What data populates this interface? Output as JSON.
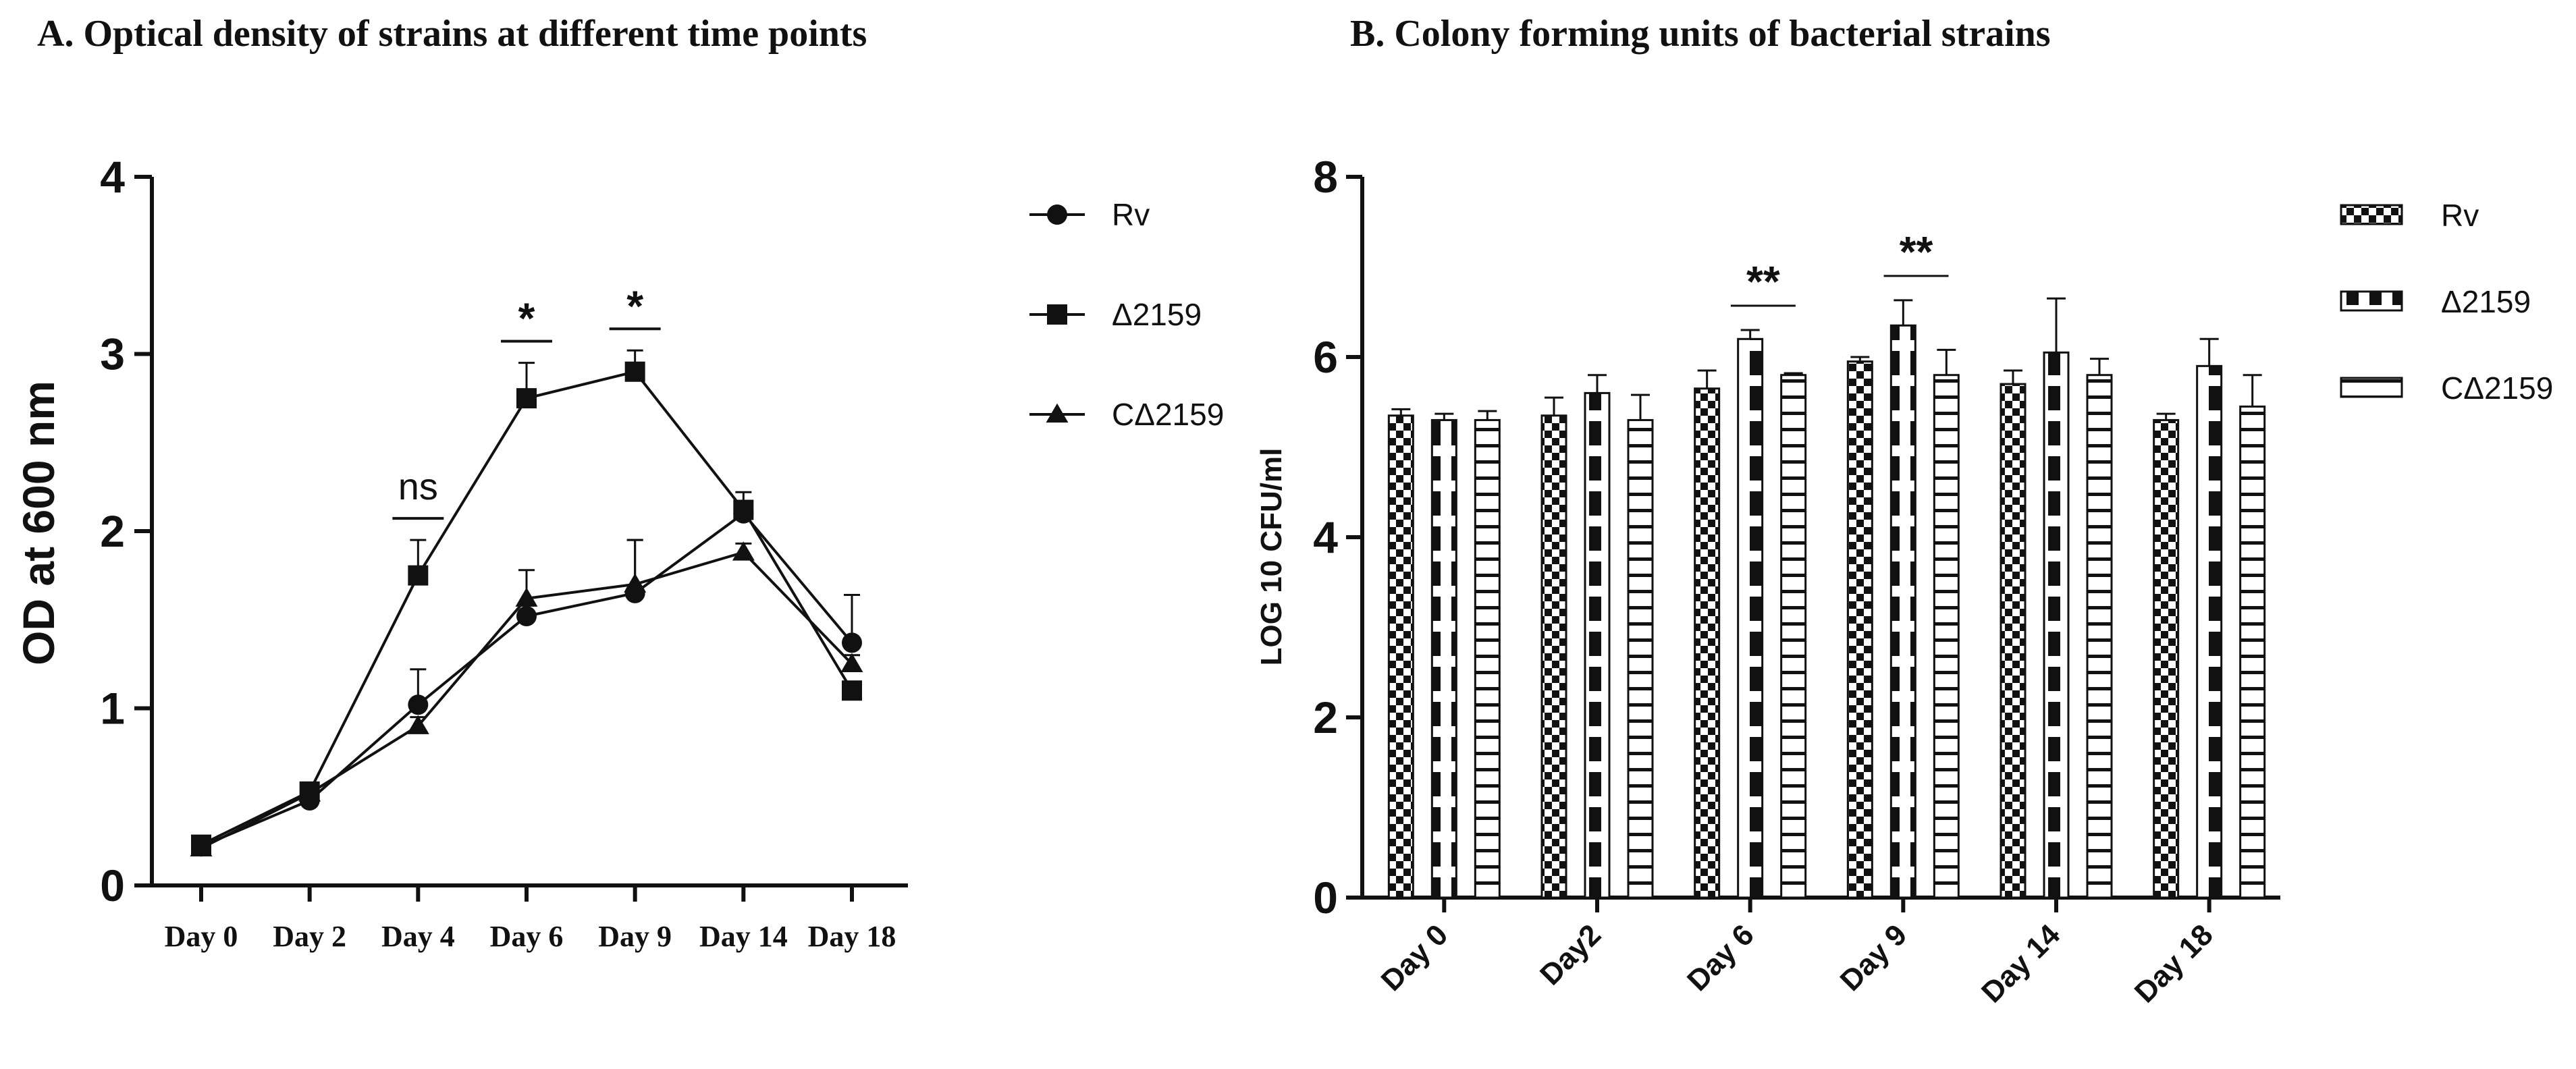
{
  "chart_data": [
    {
      "panel": "A",
      "type": "line",
      "title": "A.   Optical density of strains at different time points",
      "xlabel": "",
      "ylabel": "OD at 600 nm",
      "categories": [
        "Day 0",
        "Day 2",
        "Day 4",
        "Day 6",
        "Day 9",
        "Day 14",
        "Day 18"
      ],
      "ylim": [
        0,
        4
      ],
      "yticks": [
        "0",
        "1",
        "2",
        "3",
        "4"
      ],
      "series": [
        {
          "name": "Rv",
          "marker": "circle",
          "values": [
            0.22,
            0.48,
            1.02,
            1.52,
            1.65,
            2.1,
            1.37
          ],
          "errors": [
            0.03,
            0.03,
            0.2,
            0.06,
            0.3,
            0.06,
            0.27
          ]
        },
        {
          "name": "Δ2159",
          "marker": "square",
          "values": [
            0.23,
            0.53,
            1.75,
            2.75,
            2.9,
            2.12,
            1.1
          ],
          "errors": [
            0.03,
            0.03,
            0.2,
            0.2,
            0.12,
            0.1,
            0.05
          ]
        },
        {
          "name": "CΔ2159",
          "marker": "triangle",
          "values": [
            0.21,
            0.52,
            0.9,
            1.62,
            1.7,
            1.88,
            1.25
          ],
          "errors": [
            0.03,
            0.03,
            0.05,
            0.16,
            0.25,
            0.05,
            0.05
          ]
        }
      ],
      "annotations": [
        {
          "category": "Day 4",
          "text": "ns"
        },
        {
          "category": "Day 6",
          "text": "*"
        },
        {
          "category": "Day 9",
          "text": "*"
        }
      ],
      "legend_position": "right"
    },
    {
      "panel": "B",
      "type": "bar",
      "title": "B.  Colony forming units of bacterial strains",
      "xlabel": "",
      "ylabel": "LOG 10 CFU/ml",
      "categories": [
        "Day 0",
        "Day2",
        "Day 6",
        "Day 9",
        "Day 14",
        "Day 18"
      ],
      "ylim": [
        0,
        8
      ],
      "yticks": [
        "0",
        "2",
        "4",
        "6",
        "8"
      ],
      "series": [
        {
          "name": "Rv",
          "pattern": "checker",
          "values": [
            5.35,
            5.35,
            5.65,
            5.95,
            5.7,
            5.3
          ],
          "errors": [
            0.07,
            0.2,
            0.2,
            0.05,
            0.15,
            0.07
          ]
        },
        {
          "name": "Δ2159",
          "pattern": "block-stripe",
          "values": [
            5.3,
            5.6,
            6.2,
            6.35,
            6.05,
            5.9
          ],
          "errors": [
            0.07,
            0.2,
            0.1,
            0.28,
            0.6,
            0.3
          ]
        },
        {
          "name": "CΔ2159",
          "pattern": "horizontal-lines",
          "values": [
            5.3,
            5.3,
            5.8,
            5.8,
            5.8,
            5.45
          ],
          "errors": [
            0.1,
            0.28,
            0.02,
            0.28,
            0.18,
            0.35
          ]
        }
      ],
      "annotations": [
        {
          "category": "Day 6",
          "text": "**"
        },
        {
          "category": "Day 9",
          "text": "**"
        }
      ],
      "legend_position": "right"
    }
  ]
}
